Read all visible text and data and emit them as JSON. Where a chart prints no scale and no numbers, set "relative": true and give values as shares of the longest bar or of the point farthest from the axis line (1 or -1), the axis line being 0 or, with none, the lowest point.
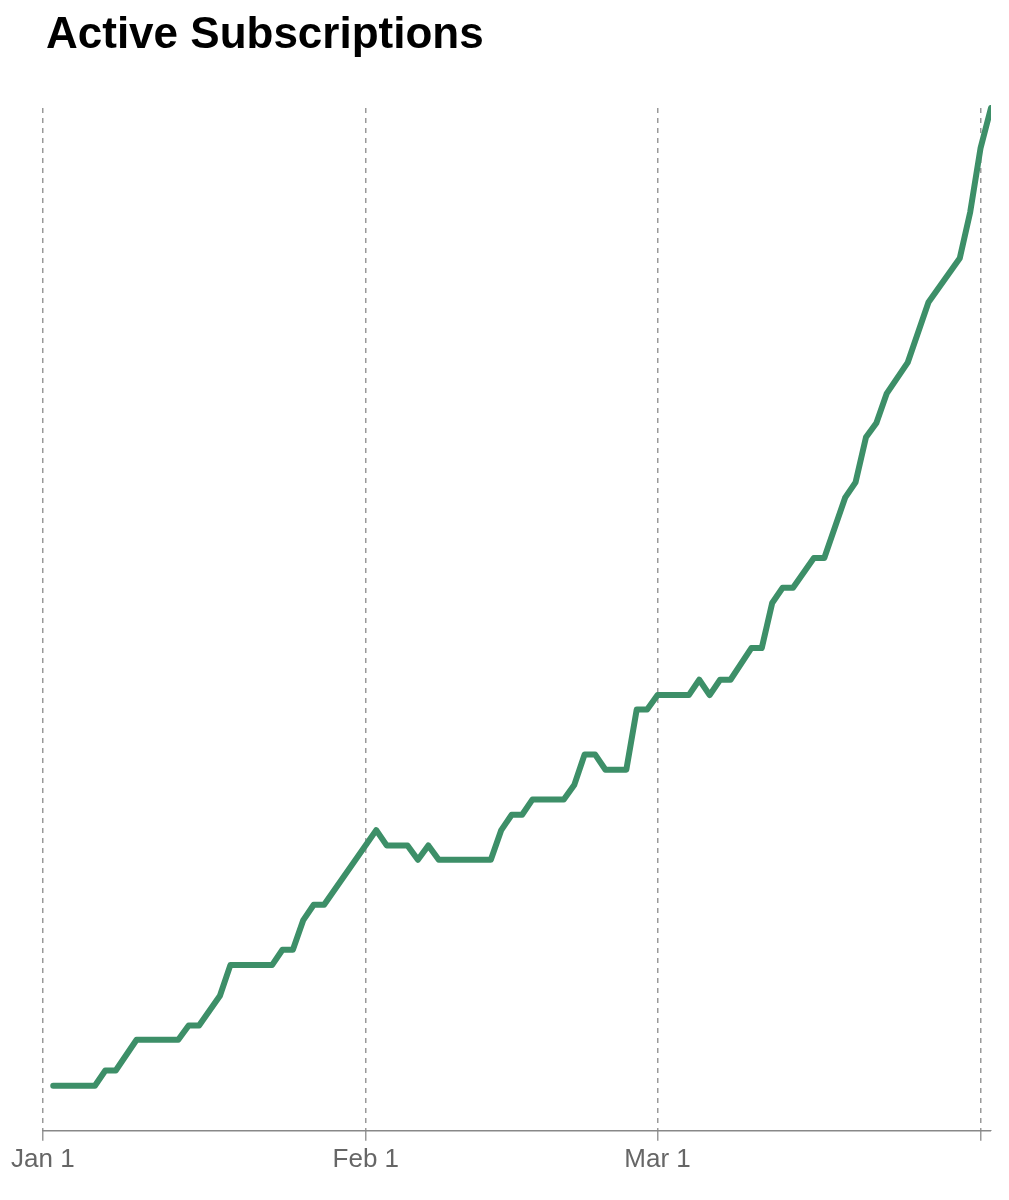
{
  "chart_data": {
    "type": "line",
    "title": "Active Subscriptions",
    "relative": true,
    "x": [
      "--01-02",
      "--01-06",
      "--01-07",
      "--01-08",
      "--01-10",
      "--01-14",
      "--01-15",
      "--01-16",
      "--01-18",
      "--01-19",
      "--01-23",
      "--01-24",
      "--01-25",
      "--01-26",
      "--01-27",
      "--01-28",
      "--02-02",
      "--02-03",
      "--02-05",
      "--02-06",
      "--02-07",
      "--02-08",
      "--02-13",
      "--02-14",
      "--02-15",
      "--02-16",
      "--02-17",
      "--02-20",
      "--02-21",
      "--02-22",
      "--02-23",
      "--02-24",
      "--02-26",
      "--02-27",
      "--02-28",
      "--03-01",
      "--03-04",
      "--03-05",
      "--03-06",
      "--03-07",
      "--03-08",
      "--03-10",
      "--03-11",
      "--03-12",
      "--03-13",
      "--03-14",
      "--03-16",
      "--03-17",
      "--03-19",
      "--03-20",
      "--03-21",
      "--03-22",
      "--03-23",
      "--03-25",
      "--03-27",
      "--03-30",
      "--03-31",
      "--04-01",
      "--04-02"
    ],
    "series": [
      {
        "color": "#3d8f68",
        "values": [
          0.044,
          0.044,
          0.059,
          0.059,
          0.089,
          0.089,
          0.103,
          0.103,
          0.132,
          0.162,
          0.162,
          0.177,
          0.177,
          0.206,
          0.221,
          0.221,
          0.294,
          0.279,
          0.279,
          0.265,
          0.279,
          0.265,
          0.265,
          0.294,
          0.309,
          0.309,
          0.324,
          0.324,
          0.338,
          0.368,
          0.368,
          0.353,
          0.353,
          0.412,
          0.412,
          0.426,
          0.426,
          0.441,
          0.426,
          0.441,
          0.441,
          0.472,
          0.472,
          0.516,
          0.531,
          0.531,
          0.56,
          0.56,
          0.619,
          0.634,
          0.678,
          0.692,
          0.721,
          0.751,
          0.81,
          0.853,
          0.898,
          0.961,
          1
        ]
      }
    ],
    "xlim": [
      "--01-01",
      "--04-02"
    ],
    "xticks": [
      {
        "value": "--01-01",
        "label": "Jan 1"
      },
      {
        "value": "--02-01",
        "label": "Feb 1"
      },
      {
        "value": "--03-01",
        "label": "Mar 1"
      },
      {
        "value": "--04-01",
        "label": null
      }
    ],
    "grid": "x",
    "legend": false,
    "marker": "none",
    "line_style": "solid"
  }
}
